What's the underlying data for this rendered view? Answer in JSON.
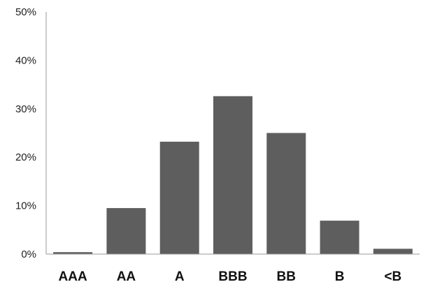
{
  "chart_data": {
    "type": "bar",
    "title": "",
    "xlabel": "",
    "ylabel": "",
    "categories": [
      "AAA",
      "AA",
      "A",
      "BBB",
      "BB",
      "B",
      "<B"
    ],
    "values": [
      0.4,
      9.5,
      23.2,
      32.6,
      25.0,
      6.9,
      1.1
    ],
    "ylim": [
      0,
      50
    ],
    "yticks": [
      "0%",
      "10%",
      "20%",
      "30%",
      "40%",
      "50%"
    ],
    "grid": false,
    "bar_color": "#5e5e5e",
    "axis_color": "#9a9a9a"
  }
}
